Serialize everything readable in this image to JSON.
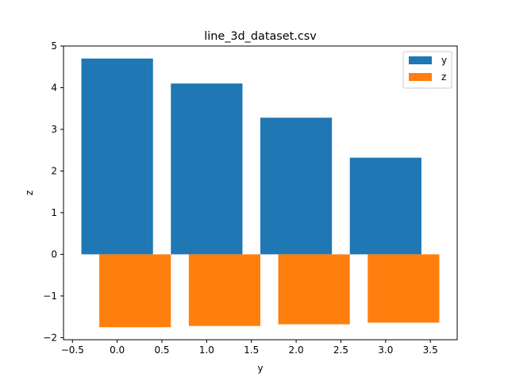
{
  "chart_data": {
    "type": "bar",
    "title": "line_3d_dataset.csv",
    "xlabel": "y",
    "ylabel": "z",
    "xlim": [
      -0.6,
      3.8
    ],
    "ylim": [
      -2.05,
      5.0
    ],
    "grid": false,
    "legend_position": "top-right",
    "x_ticks": [
      {
        "value": -0.5,
        "label": "−0.5"
      },
      {
        "value": 0.0,
        "label": "0.0"
      },
      {
        "value": 0.5,
        "label": "0.5"
      },
      {
        "value": 1.0,
        "label": "1.0"
      },
      {
        "value": 1.5,
        "label": "1.5"
      },
      {
        "value": 2.0,
        "label": "2.0"
      },
      {
        "value": 2.5,
        "label": "2.5"
      },
      {
        "value": 3.0,
        "label": "3.0"
      },
      {
        "value": 3.5,
        "label": "3.5"
      }
    ],
    "y_ticks": [
      {
        "value": -2,
        "label": "−2"
      },
      {
        "value": -1,
        "label": "−1"
      },
      {
        "value": 0,
        "label": "0"
      },
      {
        "value": 1,
        "label": "1"
      },
      {
        "value": 2,
        "label": "2"
      },
      {
        "value": 3,
        "label": "3"
      },
      {
        "value": 4,
        "label": "4"
      },
      {
        "value": 5,
        "label": "5"
      }
    ],
    "series": [
      {
        "name": "y",
        "color": "#1f77b4",
        "x": [
          0,
          1,
          2,
          3
        ],
        "values": [
          4.7,
          4.1,
          3.28,
          2.32
        ],
        "bar_width": 0.8,
        "offset": 0.0
      },
      {
        "name": "z",
        "color": "#ff7f0e",
        "x": [
          0,
          1,
          2,
          3
        ],
        "values": [
          -1.75,
          -1.72,
          -1.68,
          -1.64
        ],
        "bar_width": 0.8,
        "offset": 0.2
      }
    ]
  }
}
